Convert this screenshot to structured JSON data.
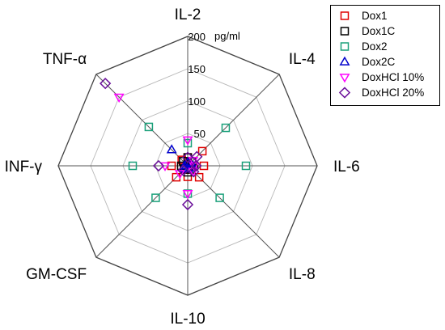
{
  "chart_data": {
    "type": "radar",
    "unit": "pg/ml",
    "rmax": 200,
    "tick_values": [
      50,
      100,
      150,
      200
    ],
    "tick_labels": [
      "50",
      "100",
      "150",
      "200"
    ],
    "axes": [
      "IL-2",
      "IL-4",
      "IL-6",
      "IL-8",
      "IL-10",
      "GM-CSF",
      "INF-γ",
      "TNF-α"
    ],
    "grid": true,
    "legend_position": "top-right",
    "series": [
      {
        "name": "Dox1",
        "color": "#e00000",
        "marker": "square",
        "values": [
          13,
          32,
          25,
          25,
          17,
          25,
          25,
          13
        ]
      },
      {
        "name": "Dox1C",
        "color": "#000000",
        "marker": "square",
        "values": [
          13,
          10,
          10,
          8,
          10,
          8,
          10,
          10
        ]
      },
      {
        "name": "Dox2",
        "color": "#1aa07a",
        "marker": "square",
        "values": [
          35,
          83,
          90,
          70,
          43,
          70,
          85,
          85
        ]
      },
      {
        "name": "Dox2C",
        "color": "#0000cc",
        "marker": "triangle-up",
        "values": [
          5,
          5,
          8,
          5,
          5,
          7,
          5,
          35
        ]
      },
      {
        "name": "DoxHCl 10%",
        "color": "#ff00ff",
        "marker": "triangle-down",
        "values": [
          40,
          12,
          10,
          12,
          43,
          17,
          35,
          150
        ]
      },
      {
        "name": "DoxHCl 20%",
        "color": "#6a0f9a",
        "marker": "diamond",
        "values": [
          13,
          20,
          13,
          13,
          60,
          10,
          45,
          180
        ]
      }
    ]
  }
}
